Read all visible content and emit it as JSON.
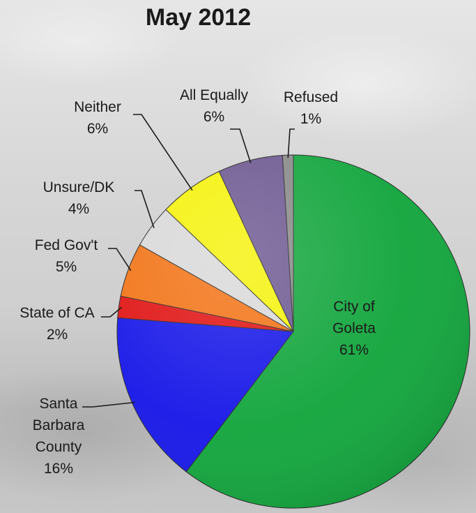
{
  "chart_data": {
    "type": "pie",
    "title": "May 2012",
    "slices": [
      {
        "label": "City of Goleta",
        "label_lines": [
          "City of",
          "Goleta"
        ],
        "value": 61,
        "value_text": "61%",
        "color": "#14a63e"
      },
      {
        "label": "Santa Barbara County",
        "label_lines": [
          "Santa",
          "Barbara",
          "County"
        ],
        "value": 16,
        "value_text": "16%",
        "color": "#1919e8"
      },
      {
        "label": "State of CA",
        "label_lines": [
          "State of CA"
        ],
        "value": 2,
        "value_text": "2%",
        "color": "#e01515"
      },
      {
        "label": "Fed Gov't",
        "label_lines": [
          "Fed Gov't"
        ],
        "value": 5,
        "value_text": "5%",
        "color": "#f27417"
      },
      {
        "label": "Unsure/DK",
        "label_lines": [
          "Unsure/DK"
        ],
        "value": 4,
        "value_text": "4%",
        "color": "#d9d9d9"
      },
      {
        "label": "Neither",
        "label_lines": [
          "Neither"
        ],
        "value": 6,
        "value_text": "6%",
        "color": "#f5f20d"
      },
      {
        "label": "All Equally",
        "label_lines": [
          "All Equally"
        ],
        "value": 6,
        "value_text": "6%",
        "color": "#6e5a92"
      },
      {
        "label": "Refused",
        "label_lines": [
          "Refused"
        ],
        "value": 1,
        "value_text": "1%",
        "color": "#8a8a8a"
      }
    ],
    "start_angle_deg": 0,
    "direction": "clockwise",
    "legend": "none"
  }
}
